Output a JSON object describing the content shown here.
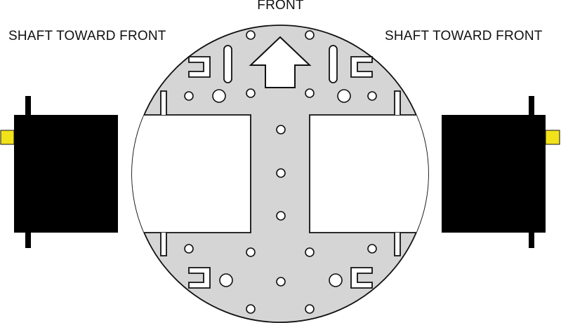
{
  "labels": {
    "front": "FRONT",
    "left_shaft": "SHAFT TOWARD FRONT",
    "right_shaft": "SHAFT TOWARD FRONT"
  },
  "colors": {
    "chassis_fill": "#d5d5d5",
    "outline": "#111111",
    "motor_body": "#000000",
    "shaft": "#f2e21a",
    "hole": "#ffffff"
  },
  "icons": {
    "front_arrow": "arrow-up-icon"
  }
}
